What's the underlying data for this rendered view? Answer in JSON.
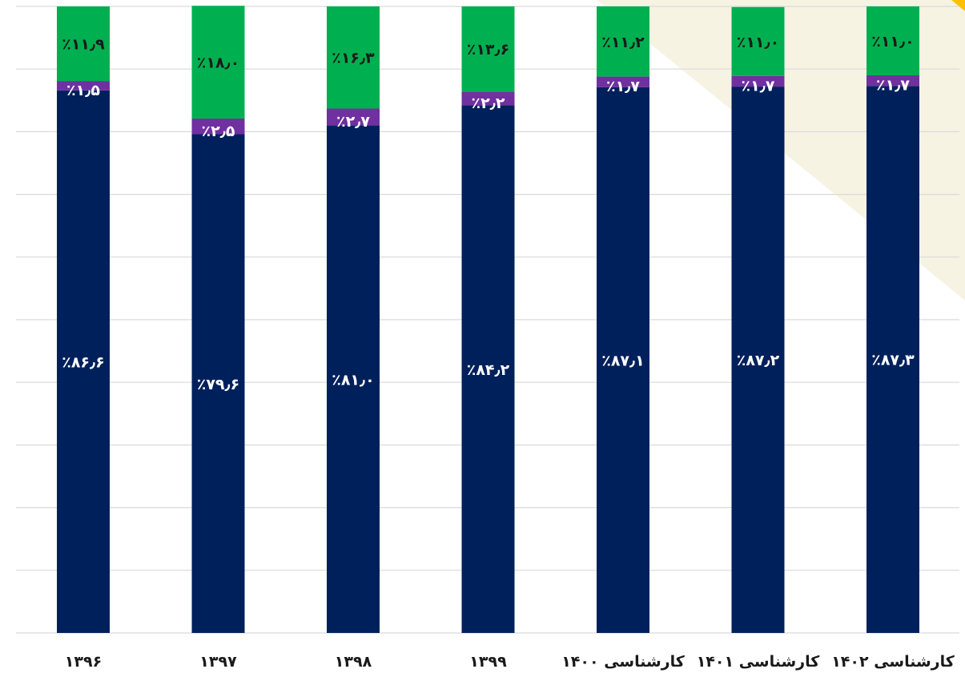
{
  "chart_data": {
    "type": "bar",
    "stacked": true,
    "orientation": "vertical",
    "percent_stacked": true,
    "categories": [
      "۱۳۹۶",
      "۱۳۹۷",
      "۱۳۹۸",
      "۱۳۹۹",
      "۱۴۰۰ کارشناسی",
      "۱۴۰۱ کارشناسی",
      "۱۴۰۲ کارشناسی"
    ],
    "series": [
      {
        "values": [
          86.6,
          79.6,
          81.0,
          84.2,
          87.1,
          87.2,
          87.3
        ],
        "labels": [
          "٪۸۶٫۶",
          "٪۷۹٫۶",
          "٪۸۱٫۰",
          "٪۸۴٫۲",
          "٪۸۷٫۱",
          "٪۸۷٫۲",
          "٪۸۷٫۳"
        ],
        "color": "#00205b",
        "label_color": "#ffffff"
      },
      {
        "values": [
          1.5,
          2.5,
          2.7,
          2.2,
          1.7,
          1.7,
          1.7
        ],
        "labels": [
          "٪۱٫۵",
          "٪۲٫۵",
          "٪۲٫۷",
          "٪۲٫۲",
          "٪۱٫۷",
          "٪۱٫۷",
          "٪۱٫۷"
        ],
        "color": "#7030a0",
        "label_color": "#ffffff"
      },
      {
        "values": [
          11.9,
          18.0,
          16.3,
          13.6,
          11.2,
          11.0,
          11.0
        ],
        "labels": [
          "٪۱۱٫۹",
          "٪۱۸٫۰",
          "٪۱۶٫۳",
          "٪۱۳٫۶",
          "٪۱۱٫۲",
          "٪۱۱٫۰",
          "٪۱۱٫۰"
        ],
        "color": "#00b050",
        "label_color": "#1a1a1a"
      }
    ],
    "ylim": [
      0,
      100
    ],
    "grid": true,
    "colors": {
      "grid": "#d9d9d9",
      "decor_light": "#f7f3e3",
      "decor_accent": "#ffc000"
    }
  }
}
